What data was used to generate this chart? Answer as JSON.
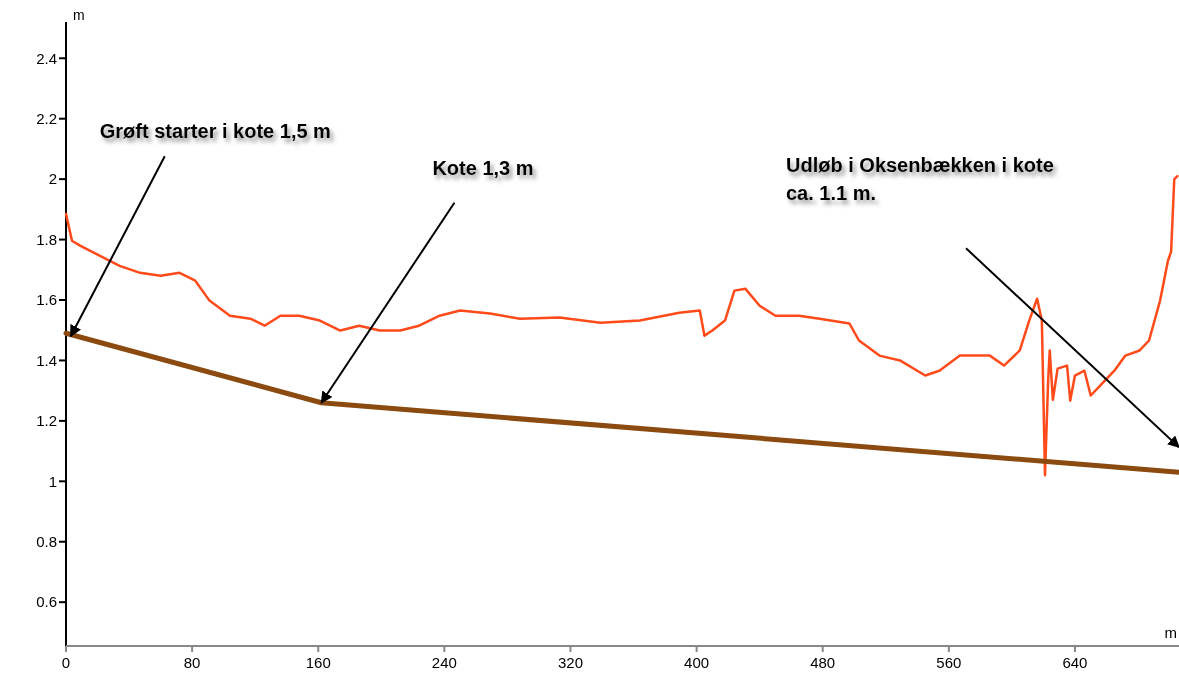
{
  "chart_data": {
    "type": "line",
    "xlabel": "m",
    "ylabel": "m",
    "xlim": [
      0,
      706
    ],
    "ylim": [
      0.455,
      2.52
    ],
    "xticks": [
      0,
      80,
      160,
      240,
      320,
      400,
      480,
      560,
      640
    ],
    "yticks": [
      0.6,
      0.8,
      1,
      1.2,
      1.4,
      1.6,
      1.8,
      2,
      2.2,
      2.4
    ],
    "grid": false,
    "marker": "none",
    "line_style": "solid",
    "series": [
      {
        "color": "#ff4a1a",
        "x": [
          0,
          3.8,
          8.9,
          21.6,
          34,
          47,
          60,
          72,
          82,
          91,
          104,
          117,
          126,
          136,
          148,
          161,
          174,
          186,
          199,
          212,
          224,
          237,
          250,
          269,
          288,
          313,
          339,
          364,
          389,
          402,
          405,
          410,
          418,
          424,
          431,
          440,
          450,
          465,
          478,
          497,
          503,
          516,
          529,
          545,
          554,
          567,
          586,
          595,
          605,
          611,
          616,
          619,
          621,
          623,
          624,
          626,
          629,
          635,
          637,
          640,
          646,
          650,
          656,
          665,
          672,
          681,
          687,
          694,
          699,
          701,
          703,
          705
        ],
        "values": [
          1.885,
          1.796,
          1.78,
          1.746,
          1.713,
          1.69,
          1.68,
          1.69,
          1.664,
          1.598,
          1.548,
          1.538,
          1.515,
          1.548,
          1.548,
          1.532,
          1.499,
          1.515,
          1.499,
          1.499,
          1.515,
          1.548,
          1.565,
          1.555,
          1.538,
          1.542,
          1.525,
          1.532,
          1.558,
          1.565,
          1.482,
          1.499,
          1.532,
          1.631,
          1.637,
          1.581,
          1.548,
          1.548,
          1.538,
          1.522,
          1.466,
          1.416,
          1.4,
          1.35,
          1.366,
          1.416,
          1.416,
          1.383,
          1.433,
          1.532,
          1.604,
          1.532,
          1.02,
          1.334,
          1.433,
          1.27,
          1.373,
          1.383,
          1.267,
          1.35,
          1.366,
          1.284,
          1.317,
          1.366,
          1.416,
          1.433,
          1.466,
          1.598,
          1.73,
          1.76,
          2.0,
          2.01
        ]
      },
      {
        "color": "#8b4a10",
        "x": [
          0,
          162,
          706
        ],
        "values": [
          1.49,
          1.26,
          1.03
        ]
      }
    ],
    "annotations": [
      {
        "text": "Grøft starter i kote 1,5 m",
        "x": 3,
        "y": 1.48
      },
      {
        "text": "Kote 1,3 m",
        "x": 162,
        "y": 1.26
      },
      "Udløb i Oksenbækken i kote ca. 1.1 m."
    ]
  }
}
